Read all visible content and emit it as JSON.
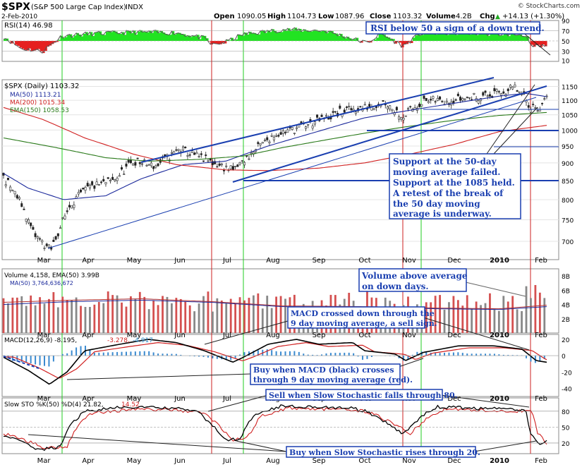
{
  "header": {
    "ticker": "$SPX",
    "name": "(S&P 500 Large Cap Index)",
    "exchange": "INDX",
    "date": "2-Feb-2010",
    "open_label": "Open",
    "open": "1090.05",
    "high_label": "High",
    "high": "1104.73",
    "low_label": "Low",
    "low": "1087.96",
    "close_label": "Close",
    "close": "1103.32",
    "volume_label": "Volume",
    "volume": "4.2B",
    "chg_label": "Chg",
    "chg": "+14.13 (+1.30%)",
    "chg_arrow": "▲",
    "copyright": "© StockCharts.com"
  },
  "colors": {
    "green": "#22e322",
    "red": "#e62020",
    "blue": "#1a3fb0",
    "navy": "#1c2a9c",
    "ma200": "#d02020",
    "ema150": "#2a7a1a",
    "price": "#222222"
  },
  "months": [
    "Mar",
    "Apr",
    "May",
    "Jun",
    "Jul",
    "Aug",
    "Sep",
    "Oct",
    "Nov",
    "Dec",
    "2010",
    "Feb"
  ],
  "panels": {
    "rsi": {
      "legend": "RSI(14) 46.98",
      "ticks": [
        "90",
        "70",
        "50",
        "30",
        "10"
      ]
    },
    "price": {
      "legend_title": "$SPX (Daily) 1103.32",
      "ma50": "MA(50) 1113.21",
      "ma200": "MA(200) 1015.34",
      "ema150": "EMA(150) 1058.53",
      "ticks": [
        "1150",
        "1100",
        "1050",
        "1000",
        "950",
        "900",
        "850",
        "800",
        "750",
        "700"
      ]
    },
    "volume": {
      "legend": "Volume 4,158, EMA(50) 3.99B",
      "ma": "MA(50) 3,764,636,672",
      "ticks": [
        "8B",
        "6B",
        "4B",
        "2B"
      ]
    },
    "macd": {
      "legend_a": "MACD(12,26,9) -8.195,",
      "legend_b": "-3.278,",
      "legend_c": "-4.917",
      "ticks": [
        "20",
        "0",
        "-20",
        "-40"
      ]
    },
    "sto": {
      "legend_a": "Slow STO %K(50) %D(4) 21.82,",
      "legend_b": "14.52",
      "ticks": [
        "80",
        "50",
        "20"
      ]
    }
  },
  "annotations": {
    "rsi_note": "RSI below 50 a sign of a down trend.",
    "support_note": [
      "Support at the 50-day",
      "moving average failed.",
      "Support at the 1085 held.",
      "A retest of the break of",
      "the 50 day moving",
      "average is underway."
    ],
    "volume_note": [
      "Volume above average",
      "on down days."
    ],
    "macd_sell": [
      "MACD crossed down through the",
      "9 day moving average, a sell sign."
    ],
    "macd_buy": [
      "Buy when MACD (black) crosses",
      "through 9 day moving average (red)."
    ],
    "sto_sell": "Sell when Slow Stochastic falls through 80.",
    "sto_buy": "Buy when Slow Stochastic rises through 20."
  },
  "chart_data": {
    "type": "line",
    "title": "$SPX (S&P 500 Large Cap Index) INDX",
    "x_range": [
      "2009-02-23",
      "2010-02-02"
    ],
    "y_scale": "log",
    "ylim": [
      660,
      1175
    ],
    "series": [
      {
        "name": "$SPX (Daily)",
        "x": [
          "Feb-24",
          "Mar-09",
          "Mar-23",
          "Apr-13",
          "May-01",
          "May-15",
          "Jun-05",
          "Jun-19",
          "Jul-08",
          "Jul-24",
          "Aug-10",
          "Aug-25",
          "Sep-14",
          "Sep-28",
          "Oct-16",
          "Oct-30",
          "Nov-16",
          "Dec-01",
          "Dec-18",
          "Jan-04",
          "Jan-19",
          "Jan-29",
          "Feb-02"
        ],
        "values": [
          760,
          680,
          800,
          860,
          880,
          900,
          940,
          920,
          880,
          980,
          1005,
          1025,
          1045,
          1060,
          1090,
          1035,
          1105,
          1100,
          1110,
          1130,
          1150,
          1075,
          1103
        ]
      },
      {
        "name": "MA(50)",
        "x": [
          "Feb-24",
          "Mar-15",
          "Apr-15",
          "May-15",
          "Jun-15",
          "Jul-15",
          "Aug-15",
          "Sep-15",
          "Oct-15",
          "Nov-15",
          "Dec-15",
          "Jan-15",
          "Feb-02"
        ],
        "values": [
          860,
          790,
          800,
          855,
          900,
          905,
          950,
          990,
          1040,
          1060,
          1090,
          1120,
          1113
        ]
      },
      {
        "name": "MA(200)",
        "x": [
          "Feb-24",
          "Mar-15",
          "Apr-15",
          "May-15",
          "Jun-15",
          "Jul-15",
          "Aug-15",
          "Sep-15",
          "Oct-15",
          "Nov-15",
          "Dec-15",
          "Jan-15",
          "Feb-02"
        ],
        "values": [
          1065,
          1010,
          955,
          915,
          890,
          880,
          880,
          890,
          905,
          930,
          960,
          995,
          1015
        ]
      },
      {
        "name": "EMA(150)",
        "x": [
          "Feb-24",
          "Mar-15",
          "Apr-15",
          "May-15",
          "Jun-15",
          "Jul-15",
          "Aug-15",
          "Sep-15",
          "Oct-15",
          "Nov-15",
          "Dec-15",
          "Jan-15",
          "Feb-02"
        ],
        "values": [
          965,
          935,
          910,
          905,
          910,
          920,
          945,
          970,
          995,
          1015,
          1035,
          1050,
          1058
        ]
      }
    ],
    "rsi_last": 46.98,
    "macd_last": [
      -8.195,
      -3.278,
      -4.917
    ],
    "sto_last": [
      21.82,
      14.52
    ]
  }
}
